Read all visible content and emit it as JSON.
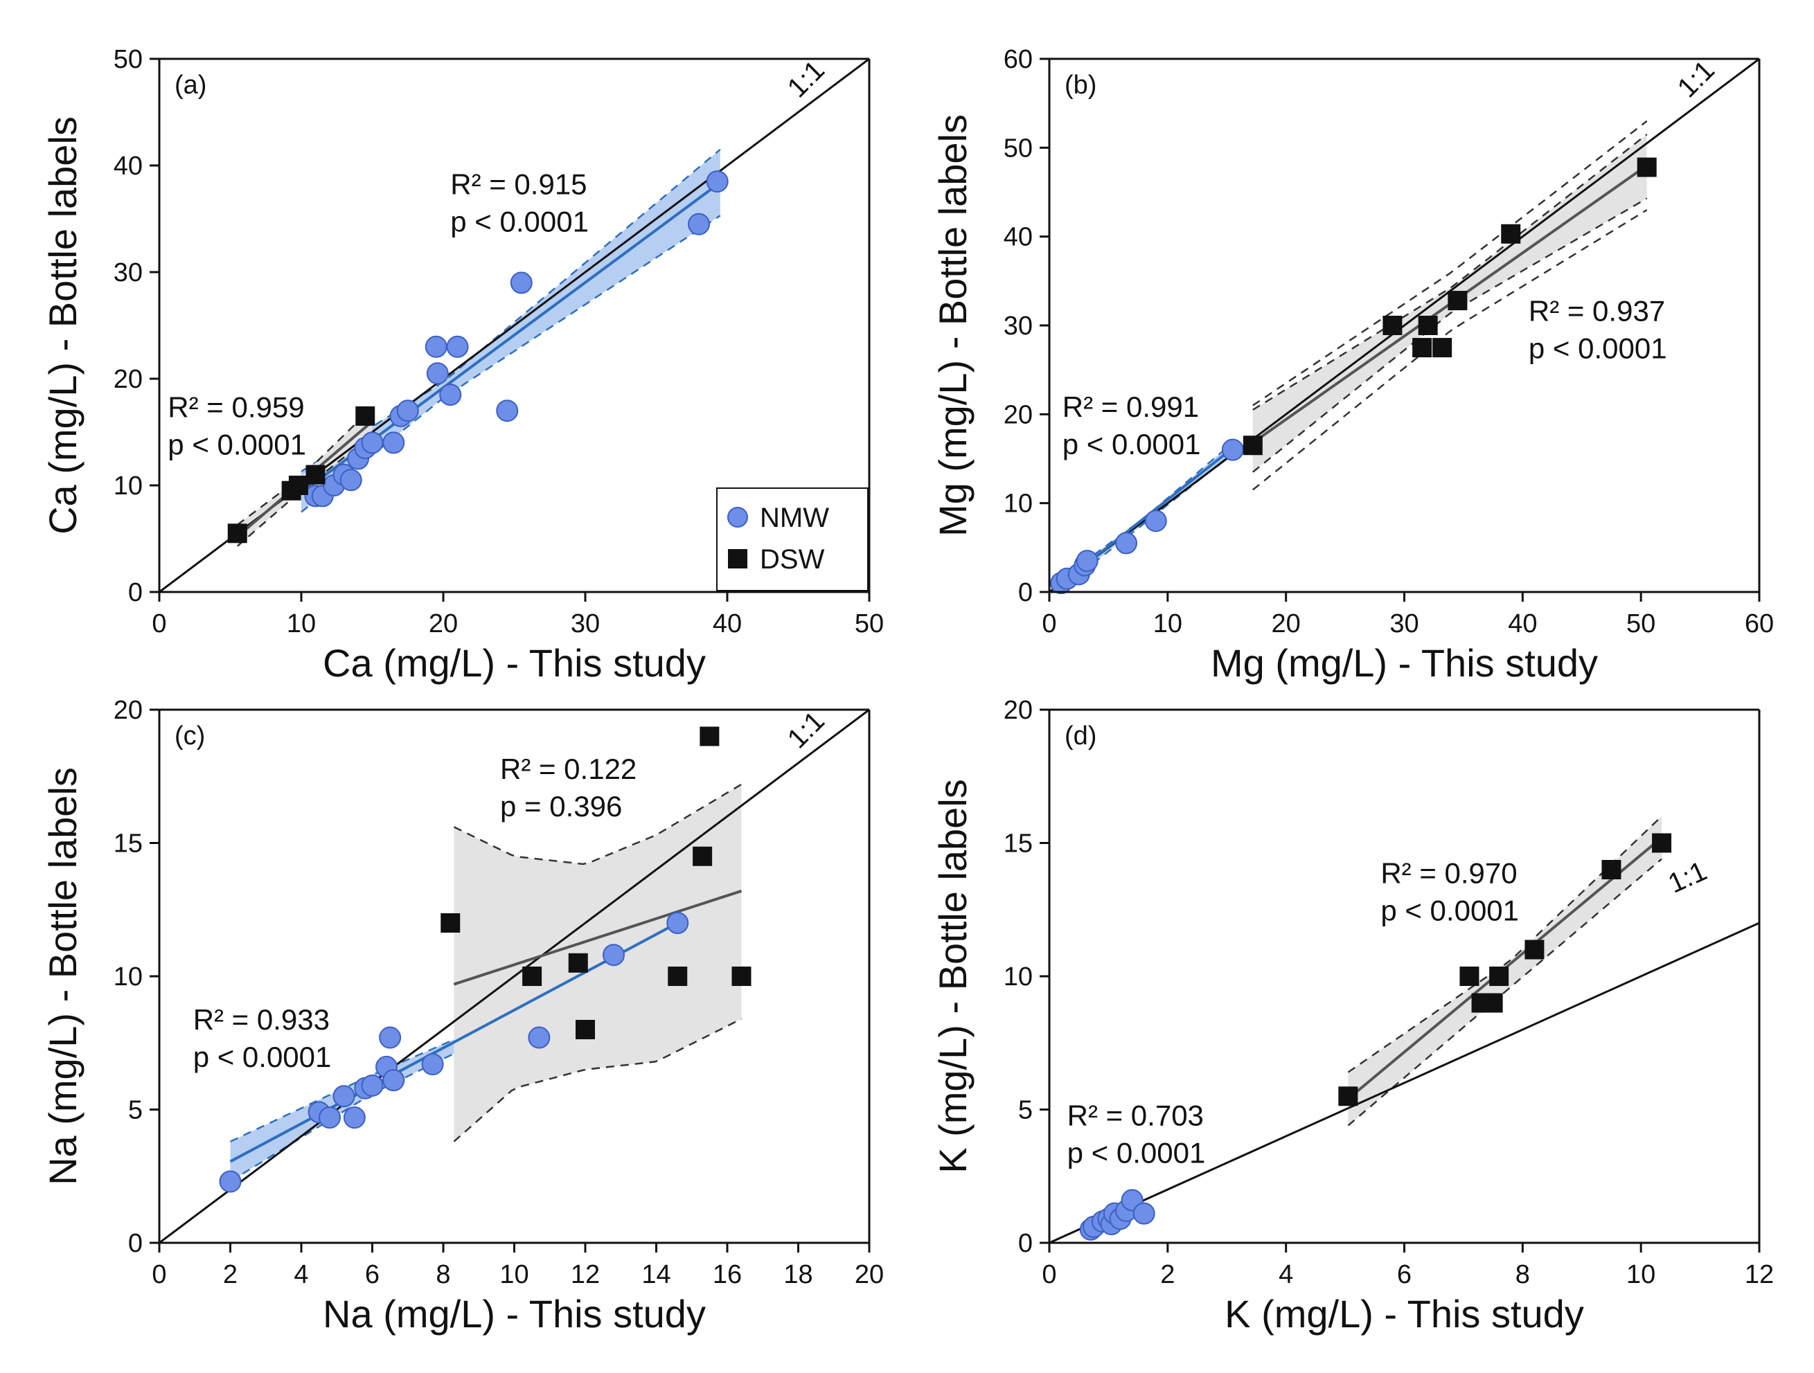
{
  "colors": {
    "nmw": "#6d8fe8",
    "nmw_stroke": "#3b5fc4",
    "nmw_fit": "#2d6fc0",
    "nmw_band": "#a9c6ef",
    "dsw": "#111111",
    "dsw_fit": "#555555",
    "dsw_band": "#e3e3e3"
  },
  "legend": {
    "nmw": "NMW",
    "dsw": "DSW"
  },
  "chart_data": [
    {
      "type": "scatter",
      "panel": "(a)",
      "xlabel": "Ca (mg/L) - This study",
      "ylabel": "Ca (mg/L) - Bottle labels",
      "xlim": [
        0,
        50
      ],
      "ylim": [
        0,
        50
      ],
      "xticks": [
        0,
        10,
        20,
        30,
        40,
        50
      ],
      "yticks": [
        0,
        10,
        20,
        30,
        40,
        50
      ],
      "ref_line": [
        [
          0,
          0
        ],
        [
          50,
          50
        ]
      ],
      "ref_label": "1:1",
      "legend_position": "bottom-right",
      "series": [
        {
          "name": "NMW",
          "marker": "circle",
          "points": [
            [
              11,
              9
            ],
            [
              11.5,
              9
            ],
            [
              12.3,
              10
            ],
            [
              13,
              11
            ],
            [
              13.5,
              10.5
            ],
            [
              14,
              12.5
            ],
            [
              14.5,
              13.5
            ],
            [
              15,
              14
            ],
            [
              16.5,
              14
            ],
            [
              17,
              16.5
            ],
            [
              17.5,
              17
            ],
            [
              19.5,
              23
            ],
            [
              19.6,
              20.5
            ],
            [
              21,
              23
            ],
            [
              20.5,
              18.5
            ],
            [
              24.5,
              17
            ],
            [
              25.5,
              29
            ],
            [
              38,
              34.5
            ],
            [
              39.3,
              38.5
            ]
          ],
          "fit": {
            "line": [
              [
                10,
                9.3
              ],
              [
                39.5,
                38.4
              ]
            ],
            "band": {
              "x": [
                10,
                20,
                39.5
              ],
              "upper": [
                11.3,
                19.7,
                41.5
              ],
              "lower": [
                7.5,
                18.2,
                35.3
              ]
            }
          },
          "annotation": {
            "text": [
              "R² = 0.915",
              "p < 0.0001"
            ],
            "at": [
              20.5,
              37.3
            ]
          }
        },
        {
          "name": "DSW",
          "marker": "square",
          "points": [
            [
              5.5,
              5.5
            ],
            [
              9.3,
              9.5
            ],
            [
              9.8,
              10
            ],
            [
              11,
              11
            ],
            [
              14.5,
              16.5
            ]
          ],
          "fit": {
            "line": [
              [
                5.5,
                5.2
              ],
              [
                15,
                16
              ]
            ],
            "band": {
              "x": [
                5.5,
                10,
                15
              ],
              "upper": [
                6.3,
                10.8,
                17.3
              ],
              "lower": [
                4.3,
                9.5,
                14.7
              ]
            }
          },
          "annotation": {
            "text": [
              "R² = 0.959",
              "p < 0.0001"
            ],
            "at": [
              0.6,
              16.4
            ]
          }
        }
      ]
    },
    {
      "type": "scatter",
      "panel": "(b)",
      "xlabel": "Mg (mg/L) - This study",
      "ylabel": "Mg (mg/L) - Bottle labels",
      "xlim": [
        0,
        60
      ],
      "ylim": [
        0,
        60
      ],
      "xticks": [
        0,
        10,
        20,
        30,
        40,
        50,
        60
      ],
      "yticks": [
        0,
        10,
        20,
        30,
        40,
        50,
        60
      ],
      "ref_line": [
        [
          0,
          0
        ],
        [
          60,
          60
        ]
      ],
      "ref_label": "1:1",
      "series": [
        {
          "name": "NMW",
          "marker": "circle",
          "points": [
            [
              1,
              1
            ],
            [
              1.5,
              1.5
            ],
            [
              2.5,
              2
            ],
            [
              3,
              3
            ],
            [
              3.2,
              3.5
            ],
            [
              6.5,
              5.5
            ],
            [
              9,
              8
            ],
            [
              15.5,
              16
            ]
          ],
          "fit": {
            "line": [
              [
                0.8,
                0.7
              ],
              [
                15.5,
                16.2
              ]
            ],
            "band": {
              "x": [
                0.8,
                8,
                15.5
              ],
              "upper": [
                1.3,
                8.3,
                16.8
              ],
              "lower": [
                0.2,
                7.7,
                15.6
              ]
            }
          },
          "annotation": {
            "text": [
              "R² = 0.991",
              "p < 0.0001"
            ],
            "at": [
              1.1,
              19.7
            ]
          }
        },
        {
          "name": "DSW",
          "marker": "square",
          "points": [
            [
              17.2,
              16.5
            ],
            [
              29,
              30
            ],
            [
              31.5,
              27.5
            ],
            [
              32,
              30
            ],
            [
              33.2,
              27.5
            ],
            [
              34.5,
              32.8
            ],
            [
              39,
              40.3
            ],
            [
              50.5,
              47.8
            ]
          ],
          "fit": {
            "line": [
              [
                17.2,
                16.8
              ],
              [
                50.5,
                48
              ]
            ],
            "band": {
              "x": [
                17.2,
                34,
                50.5
              ],
              "upper": [
                20.5,
                34.3,
                51.5
              ],
              "lower": [
                13.5,
                31.5,
                44.3
              ]
            },
            "pred": {
              "x": [
                17.2,
                34,
                50.5
              ],
              "upper": [
                21,
                36,
                53
              ],
              "lower": [
                11.5,
                29.5,
                43
              ]
            }
          },
          "annotation": {
            "text": [
              "R² = 0.937",
              "p < 0.0001"
            ],
            "at": [
              40.5,
              30.5
            ]
          }
        }
      ]
    },
    {
      "type": "scatter",
      "panel": "(c)",
      "xlabel": "Na (mg/L) - This study",
      "ylabel": "Na (mg/L) - Bottle labels",
      "xlim": [
        0,
        20
      ],
      "ylim": [
        0,
        20
      ],
      "xticks": [
        0,
        2,
        4,
        6,
        8,
        10,
        12,
        14,
        16,
        18,
        20
      ],
      "yticks": [
        0,
        5,
        10,
        15,
        20
      ],
      "ref_line": [
        [
          0,
          0
        ],
        [
          20,
          20
        ]
      ],
      "ref_label": "1:1",
      "series": [
        {
          "name": "NMW",
          "marker": "circle",
          "points": [
            [
              2,
              2.3
            ],
            [
              4.5,
              4.9
            ],
            [
              4.8,
              4.7
            ],
            [
              5.2,
              5.5
            ],
            [
              5.5,
              4.7
            ],
            [
              5.8,
              5.8
            ],
            [
              6,
              5.9
            ],
            [
              6.4,
              6.6
            ],
            [
              6.5,
              7.7
            ],
            [
              6.6,
              6.1
            ],
            [
              7.7,
              6.7
            ],
            [
              10.7,
              7.7
            ],
            [
              12.8,
              10.8
            ],
            [
              14.6,
              12
            ]
          ],
          "fit": {
            "line": [
              [
                2,
                3.05
              ],
              [
                14.6,
                12
              ]
            ],
            "band": {
              "x": [
                2,
                6,
                10,
                14.6
              ],
              "upper": [
                3.8,
                6.3,
                8.6,
                12.8
              ],
              "lower": [
                2.3,
                5.6,
                8.2,
                11.1
              ]
            }
          },
          "annotation": {
            "text": [
              "R² = 0.933",
              "p < 0.0001"
            ],
            "at": [
              0.95,
              8.0
            ]
          }
        },
        {
          "name": "DSW",
          "marker": "square",
          "points": [
            [
              8.2,
              12
            ],
            [
              10.5,
              10
            ],
            [
              11.8,
              10.5
            ],
            [
              12,
              8
            ],
            [
              14.6,
              10
            ],
            [
              15.3,
              14.5
            ],
            [
              15.5,
              19
            ],
            [
              16.4,
              10
            ]
          ],
          "fit": {
            "line": [
              [
                8.3,
                9.7
              ],
              [
                16.4,
                13.2
              ]
            ],
            "band": {
              "x": [
                8.3,
                10,
                12,
                14,
                16.4
              ],
              "upper": [
                15.6,
                14.5,
                14.2,
                15.3,
                17.2
              ],
              "lower": [
                3.8,
                5.8,
                6.5,
                6.8,
                8.4
              ]
            }
          },
          "annotation": {
            "text": [
              "R² = 0.122",
              "p = 0.396"
            ],
            "at": [
              9.6,
              17.4
            ]
          }
        }
      ]
    },
    {
      "type": "scatter",
      "panel": "(d)",
      "xlabel": "K (mg/L) - This study",
      "ylabel": "K (mg/L) - Bottle labels",
      "xlim": [
        0,
        12
      ],
      "ylim": [
        0,
        20
      ],
      "xticks": [
        0,
        2,
        4,
        6,
        8,
        10,
        12
      ],
      "yticks": [
        0,
        5,
        10,
        15,
        20
      ],
      "ref_line": [
        [
          0,
          0
        ],
        [
          12,
          12
        ]
      ],
      "ref_label": "1:1",
      "series": [
        {
          "name": "NMW",
          "marker": "circle",
          "points": [
            [
              0.7,
              0.5
            ],
            [
              0.75,
              0.6
            ],
            [
              0.9,
              0.8
            ],
            [
              1,
              0.9
            ],
            [
              1.05,
              0.7
            ],
            [
              1.1,
              1.1
            ],
            [
              1.2,
              0.9
            ],
            [
              1.3,
              1.2
            ],
            [
              1.4,
              1.6
            ],
            [
              1.6,
              1.1
            ]
          ],
          "fit": {
            "line": [
              [
                0.65,
                0.5
              ],
              [
                1.6,
                1.4
              ]
            ],
            "band": {
              "x": [
                0.65,
                1.6
              ],
              "upper": [
                0.7,
                1.6
              ],
              "lower": [
                0.3,
                1.2
              ]
            }
          },
          "annotation": {
            "text": [
              "R² = 0.703",
              "p < 0.0001"
            ],
            "at": [
              0.3,
              4.4
            ]
          }
        },
        {
          "name": "DSW",
          "marker": "square",
          "points": [
            [
              5.05,
              5.5
            ],
            [
              7.1,
              10
            ],
            [
              7.3,
              9
            ],
            [
              7.5,
              9
            ],
            [
              7.6,
              10
            ],
            [
              8.2,
              11
            ],
            [
              9.5,
              14
            ],
            [
              10.35,
              15
            ]
          ],
          "fit": {
            "line": [
              [
                5.05,
                5.4
              ],
              [
                10.35,
                15.2
              ]
            ],
            "band": {
              "x": [
                5.05,
                7.8,
                10.35
              ],
              "upper": [
                6.4,
                10.6,
                16
              ],
              "lower": [
                4.4,
                9.6,
                14.4
              ]
            }
          },
          "annotation": {
            "text": [
              "R² = 0.970",
              "p < 0.0001"
            ],
            "at": [
              5.6,
              13.5
            ]
          }
        }
      ]
    }
  ]
}
